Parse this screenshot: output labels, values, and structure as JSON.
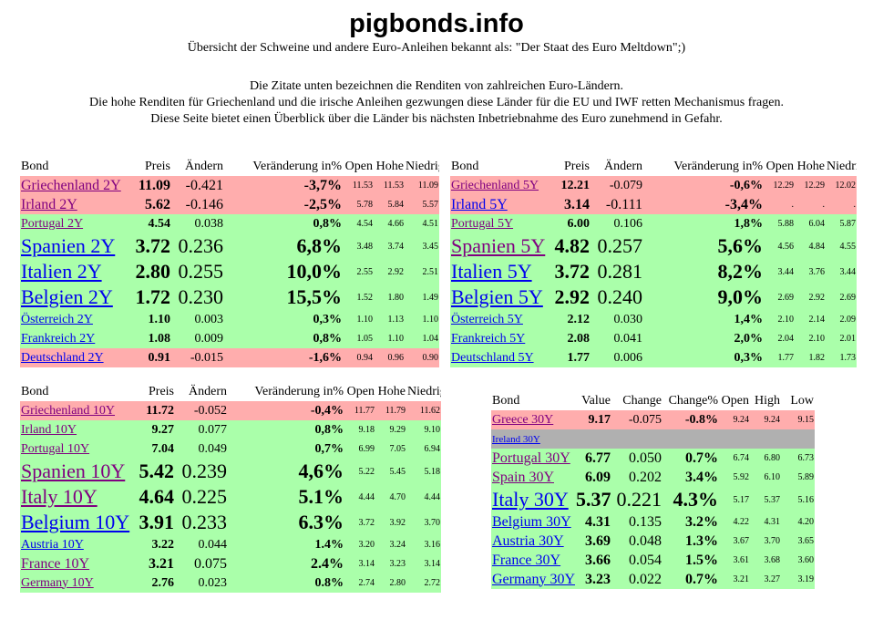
{
  "header": {
    "title": "pigbonds.info",
    "subtitle": "Übersicht der Schweine und andere Euro-Anleihen bekannt als: \"Der Staat des Euro Meltdown\";)",
    "lines": [
      "Die Zitate unten bezeichnen die Renditen von zahlreichen Euro-Ländern.",
      "Die hohe Renditen für Griechenland und die irische Anleihen gezwungen diese Länder für die EU und IWF retten Mechanismus fragen.",
      "Diese Seite bietet einen Überblick über die Länder bis nächsten Inbetriebnahme des Euro zunehmend in Gefahr."
    ]
  },
  "tables": [
    {
      "id": "2y",
      "headers": [
        "Bond",
        "Preis",
        "Ändern",
        "Veränderung in%",
        "Open",
        "Hohe",
        "Niedrige"
      ],
      "rows": [
        {
          "name": "Griechenland 2Y",
          "preis": "11.09",
          "change": "-0.421",
          "pct": "-3,7%",
          "open": "11.53",
          "high": "11.53",
          "low": "11.09",
          "color": "red",
          "size": "m",
          "link": "purple"
        },
        {
          "name": "Irland 2Y",
          "preis": "5.62",
          "change": "-0.146",
          "pct": "-2,5%",
          "open": "5.78",
          "high": "5.84",
          "low": "5.57",
          "color": "red",
          "size": "m",
          "link": "purple"
        },
        {
          "name": "Portugal 2Y",
          "preis": "4.54",
          "change": "0.038",
          "pct": "0,8%",
          "open": "4.54",
          "high": "4.66",
          "low": "4.51",
          "color": "green",
          "size": "s",
          "link": "purple"
        },
        {
          "name": "Spanien 2Y",
          "preis": "3.72",
          "change": "0.236",
          "pct": "6,8%",
          "open": "3.48",
          "high": "3.74",
          "low": "3.45",
          "color": "green",
          "size": "l",
          "link": "blue"
        },
        {
          "name": "Italien 2Y",
          "preis": "2.80",
          "change": "0.255",
          "pct": "10,0%",
          "open": "2.55",
          "high": "2.92",
          "low": "2.51",
          "color": "green",
          "size": "l",
          "link": "blue"
        },
        {
          "name": "Belgien 2Y",
          "preis": "1.72",
          "change": "0.230",
          "pct": "15,5%",
          "open": "1.52",
          "high": "1.80",
          "low": "1.49",
          "color": "green",
          "size": "l",
          "link": "blue"
        },
        {
          "name": "Österreich 2Y",
          "preis": "1.10",
          "change": "0.003",
          "pct": "0,3%",
          "open": "1.10",
          "high": "1.13",
          "low": "1.10",
          "color": "green",
          "size": "s",
          "link": "blue"
        },
        {
          "name": "Frankreich 2Y",
          "preis": "1.08",
          "change": "0.009",
          "pct": "0,8%",
          "open": "1.05",
          "high": "1.10",
          "low": "1.04",
          "color": "green",
          "size": "s",
          "link": "blue"
        },
        {
          "name": "Deutschland 2Y",
          "preis": "0.91",
          "change": "-0.015",
          "pct": "-1,6%",
          "open": "0.94",
          "high": "0.96",
          "low": "0.90",
          "color": "red",
          "size": "s",
          "link": "blue"
        }
      ]
    },
    {
      "id": "5y",
      "headers": [
        "Bond",
        "Preis",
        "Ändern",
        "Veränderung in%",
        "Open",
        "Hohe",
        "Niedrige"
      ],
      "rows": [
        {
          "name": "Griechenland 5Y",
          "preis": "12.21",
          "change": "-0.079",
          "pct": "-0,6%",
          "open": "12.29",
          "high": "12.29",
          "low": "12.02",
          "color": "red",
          "size": "s",
          "link": "purple"
        },
        {
          "name": "Irland 5Y",
          "preis": "3.14",
          "change": "-0.111",
          "pct": "-3,4%",
          "open": ".",
          "high": ".",
          "low": ".",
          "color": "red",
          "size": "m",
          "link": "blue"
        },
        {
          "name": "Portugal 5Y",
          "preis": "6.00",
          "change": "0.106",
          "pct": "1,8%",
          "open": "5.88",
          "high": "6.04",
          "low": "5.87",
          "color": "green",
          "size": "s",
          "link": "purple"
        },
        {
          "name": "Spanien 5Y",
          "preis": "4.82",
          "change": "0.257",
          "pct": "5,6%",
          "open": "4.56",
          "high": "4.84",
          "low": "4.55",
          "color": "green",
          "size": "l",
          "link": "purple"
        },
        {
          "name": "Italien 5Y",
          "preis": "3.72",
          "change": "0.281",
          "pct": "8,2%",
          "open": "3.44",
          "high": "3.76",
          "low": "3.44",
          "color": "green",
          "size": "l",
          "link": "blue"
        },
        {
          "name": "Belgien 5Y",
          "preis": "2.92",
          "change": "0.240",
          "pct": "9,0%",
          "open": "2.69",
          "high": "2.92",
          "low": "2.69",
          "color": "green",
          "size": "l",
          "link": "blue"
        },
        {
          "name": "Österreich 5Y",
          "preis": "2.12",
          "change": "0.030",
          "pct": "1,4%",
          "open": "2.10",
          "high": "2.14",
          "low": "2.09",
          "color": "green",
          "size": "s",
          "link": "blue"
        },
        {
          "name": "Frankreich 5Y",
          "preis": "2.08",
          "change": "0.041",
          "pct": "2,0%",
          "open": "2.04",
          "high": "2.10",
          "low": "2.01",
          "color": "green",
          "size": "s",
          "link": "blue"
        },
        {
          "name": "Deutschland 5Y",
          "preis": "1.77",
          "change": "0.006",
          "pct": "0,3%",
          "open": "1.77",
          "high": "1.82",
          "low": "1.73",
          "color": "green",
          "size": "s",
          "link": "blue"
        }
      ]
    },
    {
      "id": "10y",
      "headers": [
        "Bond",
        "Preis",
        "Ändern",
        "Veränderung in%",
        "Open",
        "Hohe",
        "Niedrige"
      ],
      "rows": [
        {
          "name": "Griechenland 10Y",
          "preis": "11.72",
          "change": "-0.052",
          "pct": "-0,4%",
          "open": "11.77",
          "high": "11.79",
          "low": "11.62",
          "color": "red",
          "size": "s",
          "link": "purple"
        },
        {
          "name": "Irland 10Y",
          "preis": "9.27",
          "change": "0.077",
          "pct": "0,8%",
          "open": "9.18",
          "high": "9.29",
          "low": "9.10",
          "color": "green",
          "size": "s",
          "link": "purple"
        },
        {
          "name": "Portugal 10Y",
          "preis": "7.04",
          "change": "0.049",
          "pct": "0,7%",
          "open": "6.99",
          "high": "7.05",
          "low": "6.94",
          "color": "green",
          "size": "s",
          "link": "purple"
        },
        {
          "name": "Spanien 10Y",
          "preis": "5.42",
          "change": "0.239",
          "pct": "4,6%",
          "open": "5.22",
          "high": "5.45",
          "low": "5.18",
          "color": "green",
          "size": "l",
          "link": "purple"
        },
        {
          "name": "Italy 10Y",
          "preis": "4.64",
          "change": "0.225",
          "pct": "5.1%",
          "open": "4.44",
          "high": "4.70",
          "low": "4.44",
          "color": "green",
          "size": "l",
          "link": "purple"
        },
        {
          "name": "Belgium 10Y",
          "preis": "3.91",
          "change": "0.233",
          "pct": "6.3%",
          "open": "3.72",
          "high": "3.92",
          "low": "3.70",
          "color": "green",
          "size": "l",
          "link": "blue"
        },
        {
          "name": "Austria 10Y",
          "preis": "3.22",
          "change": "0.044",
          "pct": "1.4%",
          "open": "3.20",
          "high": "3.24",
          "low": "3.16",
          "color": "green",
          "size": "s",
          "link": "blue"
        },
        {
          "name": "France 10Y",
          "preis": "3.21",
          "change": "0.075",
          "pct": "2.4%",
          "open": "3.14",
          "high": "3.23",
          "low": "3.14",
          "color": "green",
          "size": "m",
          "link": "purple"
        },
        {
          "name": "Germany 10Y",
          "preis": "2.76",
          "change": "0.023",
          "pct": "0.8%",
          "open": "2.74",
          "high": "2.80",
          "low": "2.72",
          "color": "green",
          "size": "s",
          "link": "purple"
        }
      ]
    },
    {
      "id": "30y",
      "headers": [
        "Bond",
        "Value",
        "Change",
        "Change%",
        "Open",
        "High",
        "Low"
      ],
      "rows": [
        {
          "name": "Greece 30Y",
          "preis": "9.17",
          "change": "-0.075",
          "pct": "-0.8%",
          "open": "9.24",
          "high": "9.24",
          "low": "9.15",
          "color": "red",
          "size": "s",
          "link": "purple"
        },
        {
          "name": "Ireland 30Y",
          "preis": "",
          "change": "",
          "pct": "",
          "open": "",
          "high": "",
          "low": "",
          "color": "gray",
          "size": "xs",
          "link": "blue"
        },
        {
          "name": "Portugal 30Y",
          "preis": "6.77",
          "change": "0.050",
          "pct": "0.7%",
          "open": "6.74",
          "high": "6.80",
          "low": "6.73",
          "color": "green",
          "size": "m",
          "link": "purple"
        },
        {
          "name": "Spain 30Y",
          "preis": "6.09",
          "change": "0.202",
          "pct": "3.4%",
          "open": "5.92",
          "high": "6.10",
          "low": "5.89",
          "color": "green",
          "size": "m",
          "link": "purple"
        },
        {
          "name": "Italy 30Y",
          "preis": "5.37",
          "change": "0.221",
          "pct": "4.3%",
          "open": "5.17",
          "high": "5.37",
          "low": "5.16",
          "color": "green",
          "size": "l",
          "link": "blue"
        },
        {
          "name": "Belgium 30Y",
          "preis": "4.31",
          "change": "0.135",
          "pct": "3.2%",
          "open": "4.22",
          "high": "4.31",
          "low": "4.20",
          "color": "green",
          "size": "m",
          "link": "blue"
        },
        {
          "name": "Austria 30Y",
          "preis": "3.69",
          "change": "0.048",
          "pct": "1.3%",
          "open": "3.67",
          "high": "3.70",
          "low": "3.65",
          "color": "green",
          "size": "m",
          "link": "blue"
        },
        {
          "name": "France 30Y",
          "preis": "3.66",
          "change": "0.054",
          "pct": "1.5%",
          "open": "3.61",
          "high": "3.68",
          "low": "3.60",
          "color": "green",
          "size": "m",
          "link": "blue"
        },
        {
          "name": "Germany 30Y",
          "preis": "3.23",
          "change": "0.022",
          "pct": "0.7%",
          "open": "3.21",
          "high": "3.27",
          "low": "3.19",
          "color": "green",
          "size": "m",
          "link": "blue"
        }
      ]
    }
  ]
}
